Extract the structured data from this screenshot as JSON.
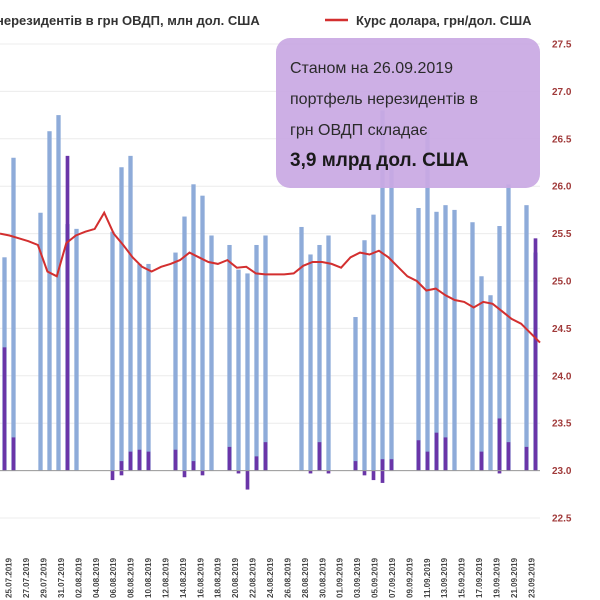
{
  "chart_data": {
    "type": "bar+line",
    "legend": {
      "bars_label": "нерезидентів в грн ОВДП, млн дол. США",
      "line_label": "Курс долара, грн/дол. США",
      "line_color": "#d32f2f",
      "bar_color": "#8eabd9",
      "bar_dark_color": "#6a35a8"
    },
    "callout": {
      "line1": "Станом на 26.09.2019",
      "line2": "портфель нерезидентів в",
      "line3": "грн ОВДП складає",
      "line4": "3,9 млрд дол. США",
      "fill": "#c9a9e3"
    },
    "right_axis": {
      "min": 22.5,
      "max": 27.5,
      "ticks": [
        "22.5",
        "23.0",
        "23.5",
        "24.0",
        "24.5",
        "25.0",
        "25.5",
        "26.0",
        "26.5",
        "27.0",
        "27.5"
      ],
      "color": "#a03a3a"
    },
    "x_labels": [
      "25.07.2019",
      "27.07.2019",
      "29.07.2019",
      "31.07.2019",
      "02.08.2019",
      "04.08.2019",
      "06.08.2019",
      "08.08.2019",
      "10.08.2019",
      "12.08.2019",
      "14.08.2019",
      "16.08.2019",
      "18.08.2019",
      "20.08.2019",
      "22.08.2019",
      "24.08.2019",
      "26.08.2019",
      "28.08.2019",
      "30.08.2019",
      "01.09.2019",
      "03.09.2019",
      "05.09.2019",
      "07.09.2019",
      "09.09.2019",
      "11.09.2019",
      "13.09.2019",
      "15.09.2019",
      "17.09.2019",
      "19.09.2019",
      "21.09.2019",
      "23.09.2019"
    ],
    "rate": [
      25.5,
      25.48,
      25.45,
      25.42,
      25.38,
      25.1,
      25.05,
      25.4,
      25.48,
      25.52,
      25.55,
      25.72,
      25.5,
      25.38,
      25.25,
      25.15,
      25.1,
      25.15,
      25.18,
      25.22,
      25.3,
      25.25,
      25.2,
      25.18,
      25.22,
      25.14,
      25.15,
      25.08,
      25.07,
      25.07,
      25.07,
      25.08,
      25.16,
      25.2,
      25.2,
      25.18,
      25.14,
      25.25,
      25.3,
      25.28,
      25.32,
      25.25,
      25.15,
      25.05,
      25.0,
      24.9,
      24.92,
      24.85,
      24.8,
      24.78,
      24.72,
      24.78,
      24.76,
      24.68,
      24.6,
      24.55,
      24.45,
      24.35
    ],
    "bars_light": [
      25.25,
      26.3,
      null,
      null,
      25.72,
      26.58,
      26.75,
      25.6,
      25.55,
      null,
      null,
      null,
      25.52,
      26.2,
      26.32,
      25.18,
      25.18,
      null,
      null,
      25.3,
      25.68,
      26.02,
      25.9,
      25.48,
      null,
      25.38,
      25.12,
      25.08,
      25.38,
      25.48,
      null,
      null,
      null,
      25.57,
      25.28,
      25.38,
      25.48,
      null,
      null,
      24.62,
      25.43,
      25.7,
      26.8,
      26.25,
      null,
      null,
      25.77,
      26.6,
      25.73,
      25.8,
      25.75,
      null,
      25.62,
      25.05,
      24.85,
      25.58,
      26.02,
      null,
      25.8,
      25.3
    ],
    "bars_dark_pos": [
      24.3,
      23.35,
      null,
      null,
      null,
      null,
      null,
      26.32,
      null,
      null,
      null,
      null,
      null,
      23.1,
      23.2,
      23.22,
      23.2,
      null,
      null,
      23.22,
      null,
      23.1,
      null,
      null,
      null,
      23.25,
      null,
      null,
      23.15,
      23.3,
      null,
      null,
      null,
      null,
      null,
      23.3,
      null,
      null,
      null,
      23.1,
      null,
      null,
      23.12,
      23.12,
      null,
      null,
      23.32,
      23.2,
      23.4,
      23.35,
      null,
      null,
      null,
      23.2,
      null,
      23.55,
      23.3,
      null,
      23.25,
      25.45
    ],
    "bars_dark_neg": [
      null,
      null,
      null,
      null,
      null,
      null,
      null,
      null,
      null,
      null,
      null,
      null,
      22.9,
      22.95,
      null,
      null,
      null,
      null,
      null,
      null,
      22.93,
      null,
      22.95,
      null,
      null,
      null,
      22.97,
      22.8,
      null,
      null,
      null,
      null,
      null,
      null,
      22.97,
      null,
      22.97,
      null,
      null,
      null,
      22.95,
      22.9,
      22.87,
      null,
      null,
      null,
      null,
      null,
      null,
      null,
      null,
      null,
      null,
      null,
      null,
      22.97,
      null,
      null,
      null,
      null
    ]
  }
}
